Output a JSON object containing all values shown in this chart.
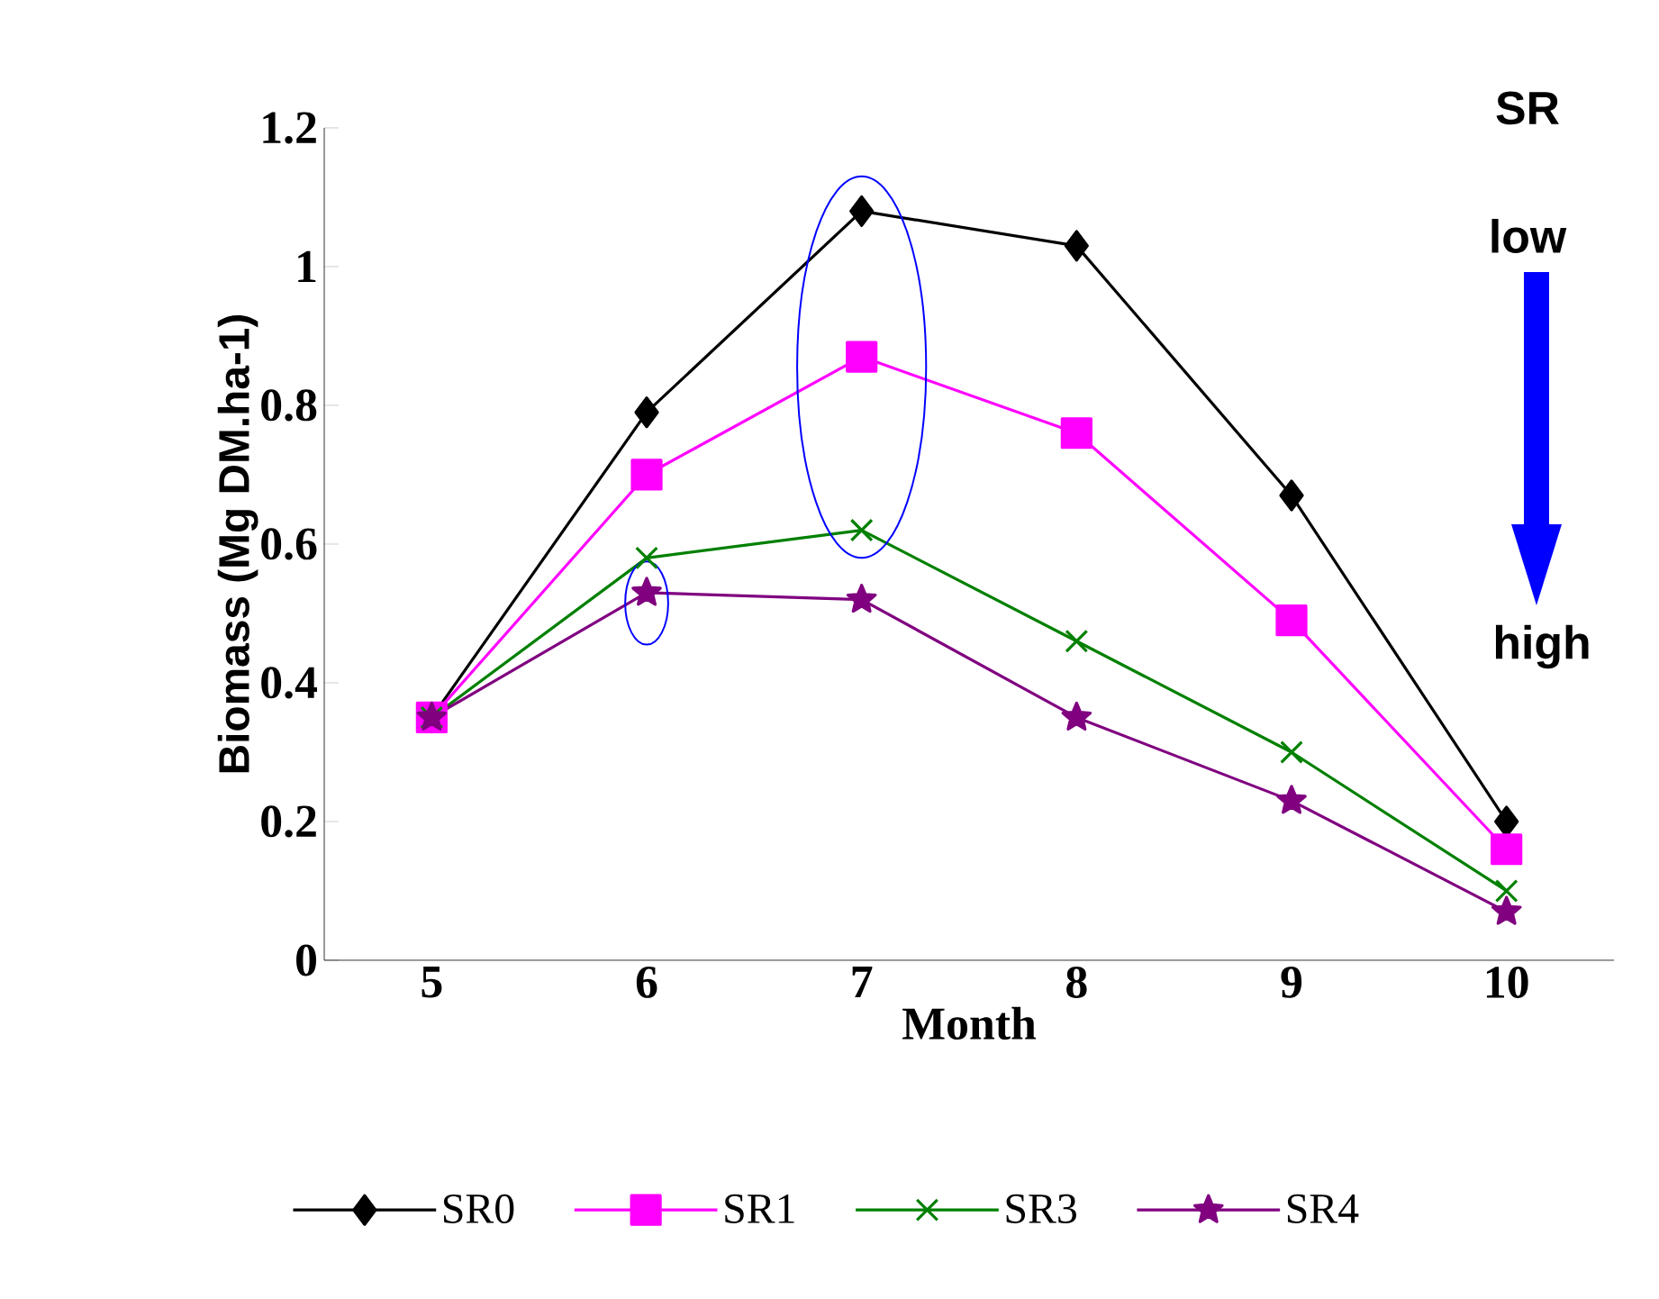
{
  "chart_data": {
    "type": "line",
    "xlabel": "Month",
    "ylabel": "Biomass (Mg DM.ha-1)",
    "categories": [
      "5",
      "6",
      "7",
      "8",
      "9",
      "10"
    ],
    "series": [
      {
        "name": "SR0",
        "color": "#000000",
        "marker": "diamond",
        "values": [
          0.35,
          0.79,
          1.08,
          1.03,
          0.67,
          0.2
        ]
      },
      {
        "name": "SR1",
        "color": "#ff00ff",
        "marker": "square",
        "values": [
          0.35,
          0.7,
          0.87,
          0.76,
          0.49,
          0.16
        ]
      },
      {
        "name": "SR3",
        "color": "#008000",
        "marker": "cross",
        "values": [
          0.35,
          0.58,
          0.62,
          0.46,
          0.3,
          0.1
        ]
      },
      {
        "name": "SR4",
        "color": "#800080",
        "marker": "star",
        "values": [
          0.35,
          0.53,
          0.52,
          0.35,
          0.23,
          0.07
        ]
      }
    ],
    "ylim": [
      0,
      1.2
    ],
    "yticks": [
      0,
      0.2,
      0.4,
      0.6,
      0.8,
      1,
      1.2
    ],
    "legend": "bottom",
    "grid": false,
    "line_style": "solid",
    "annotations": [
      "SR",
      "low",
      "high"
    ]
  }
}
